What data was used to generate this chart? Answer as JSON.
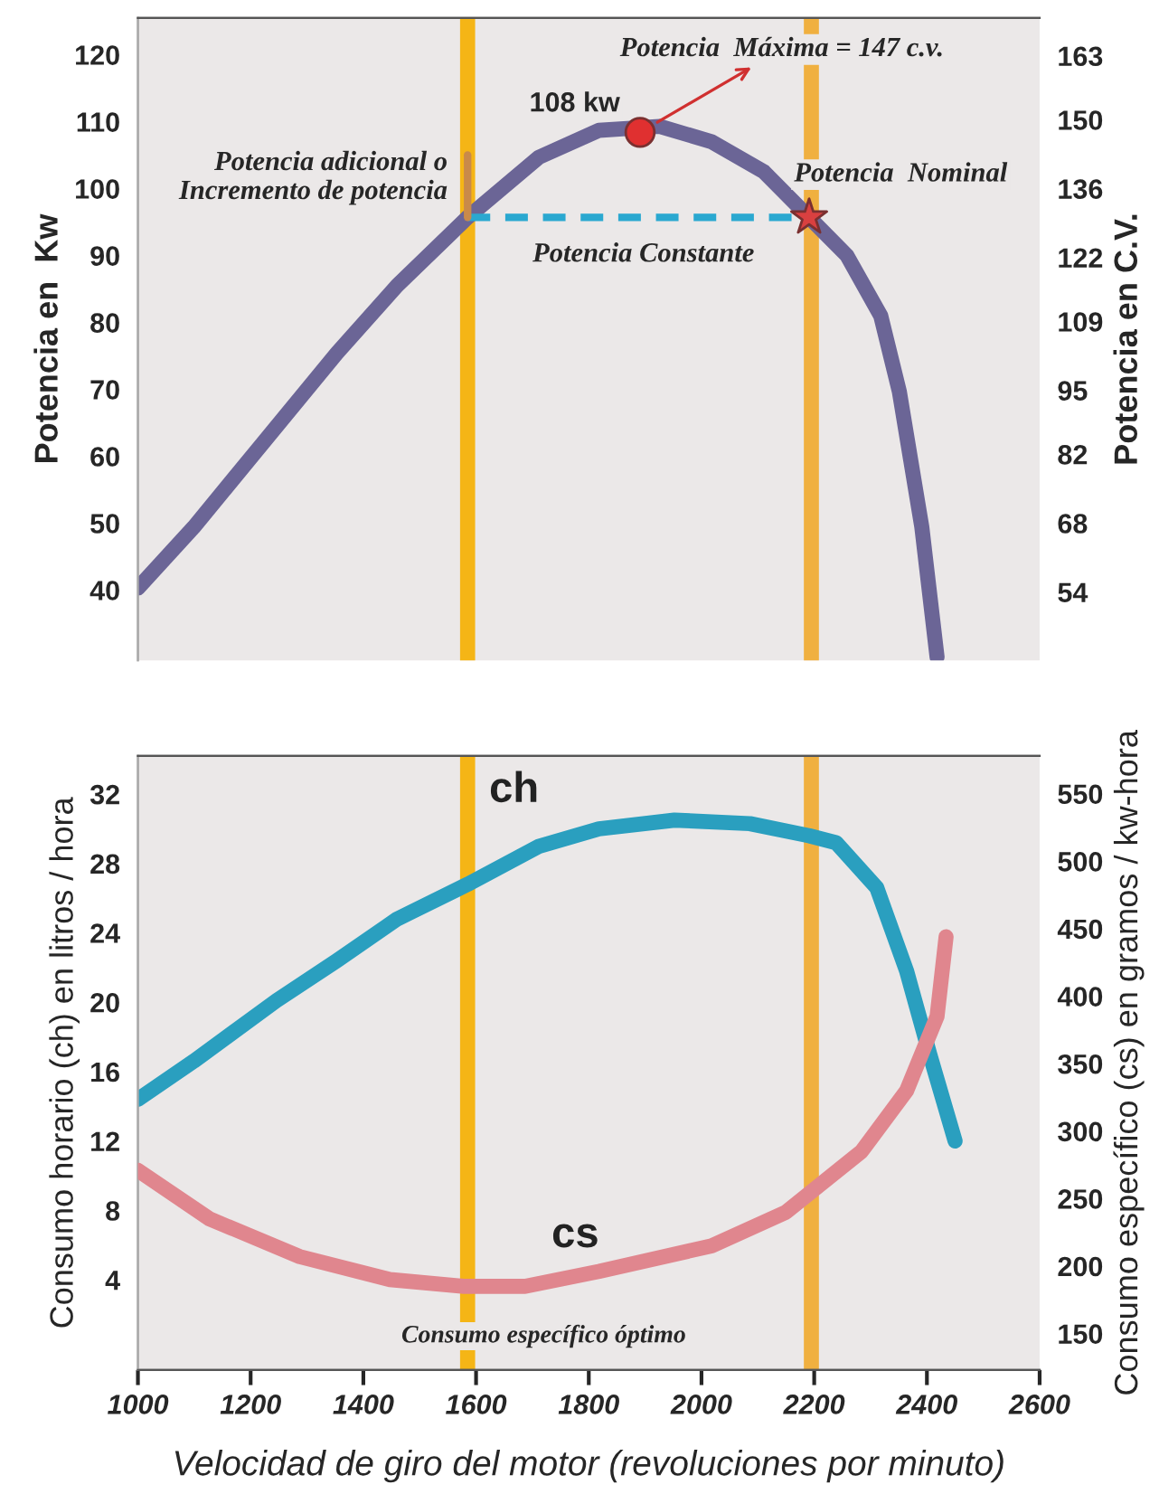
{
  "chart_data": [
    {
      "type": "line",
      "ylabel": "Potencia en  Kw",
      "y2label": "Potencia en C.V.",
      "xlim": [
        1000,
        2600
      ],
      "ylim": [
        29.5,
        125.5
      ],
      "yticks": [
        40,
        50,
        60,
        70,
        80,
        90,
        100,
        110,
        120
      ],
      "y2lim": [
        40.1,
        170.7
      ],
      "y2ticks": [
        54,
        68,
        82,
        95,
        109,
        122,
        136,
        150,
        163
      ],
      "tick_labels": "y",
      "series": [
        {
          "color": "#6b6596",
          "x": [
            1000,
            1099,
            1220,
            1353,
            1460,
            1585,
            1712,
            1818,
            1926,
            2018,
            2111,
            2191,
            2258,
            2318,
            2351,
            2391,
            2418
          ],
          "values": [
            40.3,
            49.4,
            61.8,
            75.4,
            85.5,
            95.7,
            104.7,
            108.7,
            109.3,
            107,
            102.5,
            95.7,
            90,
            81,
            69.7,
            49.4,
            30
          ]
        },
        {
          "color": "#2aa8d0",
          "line_style": "dashed",
          "x": [
            1585,
            2191
          ],
          "values": [
            95.7,
            95.7
          ]
        },
        {
          "color": "#c98a4a",
          "x": [
            1585,
            1585
          ],
          "values": [
            95.7,
            105
          ]
        },
        {
          "type": "scatter",
          "marker": "circle",
          "color": "#e03030",
          "x": [
            1891
          ],
          "values": [
            108.4
          ]
        },
        {
          "type": "scatter",
          "marker": "star",
          "color": "#d94040",
          "x": [
            2191
          ],
          "values": [
            95.7
          ]
        }
      ],
      "ref_lines": [
        {
          "axis": "x",
          "value": 1585,
          "color": "#f5b516"
        },
        {
          "axis": "x",
          "value": 2195,
          "color": "#f0b040"
        }
      ],
      "annotations": [
        {
          "text": "108 kw",
          "x": 1891,
          "y": 108.4
        },
        {
          "text": "Potencia  Máxima = 147 c.v.",
          "x": 1891,
          "y": 108.4
        },
        {
          "text": "Potencia  Nominal",
          "x": 2191,
          "y": 95.7
        },
        {
          "text": "Potencia Constante",
          "x": 1897,
          "y": 95.7
        },
        {
          "text": "Potencia adicional o\nIncremento de potencia",
          "x": 1585,
          "y": 101.6
        }
      ]
    },
    {
      "type": "line",
      "xlabel": "Velocidad de giro del motor (revoluciones por minuto)",
      "ylabel": "Consumo horario (ch) en litros / hora",
      "y2label": "Consumo específico (cs) en gramos / kw-hora",
      "xlim": [
        1000,
        2600
      ],
      "xticks": [
        1000,
        1200,
        1400,
        1600,
        1800,
        2000,
        2200,
        2400,
        2600
      ],
      "ylim": [
        -1.2,
        34.2
      ],
      "yticks": [
        4,
        8,
        12,
        16,
        20,
        24,
        28,
        32
      ],
      "y2lim": [
        123,
        578
      ],
      "y2ticks": [
        150,
        200,
        250,
        300,
        350,
        400,
        450,
        500,
        550
      ],
      "series": [
        {
          "name": "ch",
          "color": "#2a9fbf",
          "x": [
            1000,
            1099,
            1246,
            1353,
            1460,
            1585,
            1712,
            1818,
            1952,
            2086,
            2191,
            2239,
            2311,
            2364,
            2405,
            2450
          ],
          "values": [
            14.4,
            16.6,
            20.1,
            22.4,
            24.8,
            26.8,
            29.0,
            30.0,
            30.5,
            30.3,
            29.6,
            29.2,
            26.6,
            21.8,
            17.0,
            12.0
          ]
        },
        {
          "name": "cs",
          "color": "#e0868e",
          "axis": "y2",
          "x": [
            1000,
            1127,
            1287,
            1447,
            1578,
            1687,
            1818,
            2018,
            2150,
            2284,
            2364,
            2418,
            2434
          ],
          "values": [
            271,
            235,
            207,
            190,
            185,
            185,
            196,
            215,
            240,
            285,
            330,
            385,
            444
          ]
        }
      ],
      "ref_lines": [
        {
          "axis": "x",
          "value": 1585,
          "color": "#f5b516"
        },
        {
          "axis": "x",
          "value": 2195,
          "color": "#f0b040"
        }
      ],
      "annotations": [
        "Consumo específico óptimo"
      ]
    }
  ]
}
